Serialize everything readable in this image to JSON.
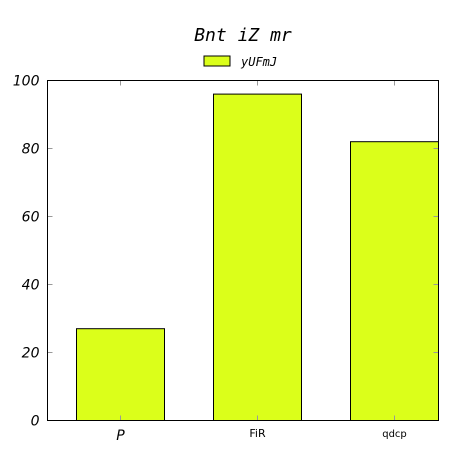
{
  "chart_data": {
    "type": "bar",
    "title": "Bnt iZ mr",
    "categories": [
      "P",
      "FiR",
      "qdcp"
    ],
    "series": [
      {
        "name": "yUFmJ",
        "values": [
          27,
          96,
          82
        ],
        "color": "#dbff1a"
      }
    ],
    "ylim": [
      0,
      100
    ],
    "yticks": [
      0,
      20,
      40,
      60,
      80,
      100
    ],
    "grid": false,
    "legend_position": "top-center"
  }
}
